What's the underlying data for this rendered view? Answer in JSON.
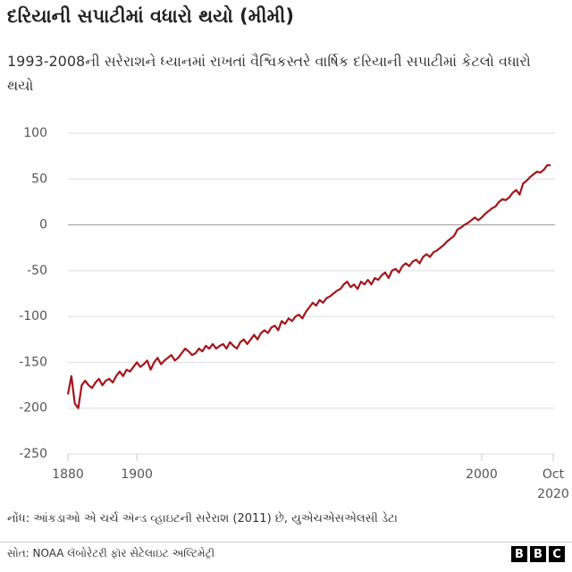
{
  "chart_data": {
    "type": "line",
    "title": "દરિયાની સપાટીમાં વધારો થયો (મીમી)",
    "subtitle": "1993-2008ની સરેરાશને ધ્યાનમાં રાખતાં વૈશ્વિકસ્તરે વાર્ષિક દરિયાની સપાટીમાં કેટલો વધારો થયો",
    "note": "નોંધ: આંકડાઓ એ ચર્ચ ઍન્ડ વ્હાઇટની સરેરાશ (2011) છે, યુએચએસએલસી ડેટા",
    "source": "સોત: NOAA લૅબોરેટરી ફૉર સેટેલાઇટ અલ્ટિમેટ્રી",
    "logo": [
      "B",
      "B",
      "C"
    ],
    "color": "#a3161b",
    "x": [
      1880,
      1881,
      1882,
      1883,
      1884,
      1885,
      1886,
      1887,
      1888,
      1889,
      1890,
      1891,
      1892,
      1893,
      1894,
      1895,
      1896,
      1897,
      1898,
      1899,
      1900,
      1901,
      1902,
      1903,
      1904,
      1905,
      1906,
      1907,
      1908,
      1909,
      1910,
      1911,
      1912,
      1913,
      1914,
      1915,
      1916,
      1917,
      1918,
      1919,
      1920,
      1921,
      1922,
      1923,
      1924,
      1925,
      1926,
      1927,
      1928,
      1929,
      1930,
      1931,
      1932,
      1933,
      1934,
      1935,
      1936,
      1937,
      1938,
      1939,
      1940,
      1941,
      1942,
      1943,
      1944,
      1945,
      1946,
      1947,
      1948,
      1949,
      1950,
      1951,
      1952,
      1953,
      1954,
      1955,
      1956,
      1957,
      1958,
      1959,
      1960,
      1961,
      1962,
      1963,
      1964,
      1965,
      1966,
      1967,
      1968,
      1969,
      1970,
      1971,
      1972,
      1973,
      1974,
      1975,
      1976,
      1977,
      1978,
      1979,
      1980,
      1981,
      1982,
      1983,
      1984,
      1985,
      1986,
      1987,
      1988,
      1989,
      1990,
      1991,
      1992,
      1993,
      1994,
      1995,
      1996,
      1997,
      1998,
      1999,
      2000,
      2001,
      2002,
      2003,
      2004,
      2005,
      2006,
      2007,
      2008,
      2009,
      2010,
      2011,
      2012,
      2013,
      2014,
      2015,
      2016,
      2017,
      2018,
      2019,
      2020
    ],
    "values": [
      -185,
      -165,
      -195,
      -200,
      -175,
      -170,
      -175,
      -178,
      -172,
      -168,
      -175,
      -170,
      -168,
      -172,
      -165,
      -160,
      -165,
      -158,
      -160,
      -155,
      -150,
      -155,
      -152,
      -148,
      -158,
      -150,
      -145,
      -152,
      -148,
      -145,
      -142,
      -148,
      -145,
      -140,
      -135,
      -138,
      -142,
      -140,
      -135,
      -138,
      -132,
      -135,
      -130,
      -135,
      -132,
      -130,
      -135,
      -128,
      -132,
      -135,
      -128,
      -125,
      -130,
      -125,
      -120,
      -125,
      -118,
      -115,
      -118,
      -112,
      -110,
      -115,
      -105,
      -108,
      -102,
      -105,
      -100,
      -98,
      -102,
      -95,
      -90,
      -85,
      -88,
      -82,
      -85,
      -80,
      -78,
      -75,
      -72,
      -70,
      -65,
      -62,
      -68,
      -65,
      -70,
      -62,
      -65,
      -60,
      -65,
      -58,
      -60,
      -55,
      -52,
      -58,
      -50,
      -48,
      -52,
      -45,
      -42,
      -45,
      -40,
      -38,
      -42,
      -35,
      -32,
      -35,
      -30,
      -28,
      -25,
      -22,
      -18,
      -15,
      -12,
      -5,
      -3,
      0,
      2,
      5,
      8,
      5,
      8,
      12,
      15,
      18,
      20,
      25,
      28,
      27,
      30,
      35,
      38,
      33,
      45,
      48,
      52,
      55,
      58,
      57,
      60,
      65,
      65
    ],
    "xlim": [
      1880,
      2020.75
    ],
    "xticks": [
      1880,
      1900,
      2000,
      {
        "value": 2020.75,
        "label": "Oct 2020"
      }
    ],
    "ylim": [
      -250,
      100
    ],
    "yticks": [
      -250,
      -200,
      -150,
      -100,
      -50,
      0,
      50,
      100
    ],
    "grid": true
  }
}
